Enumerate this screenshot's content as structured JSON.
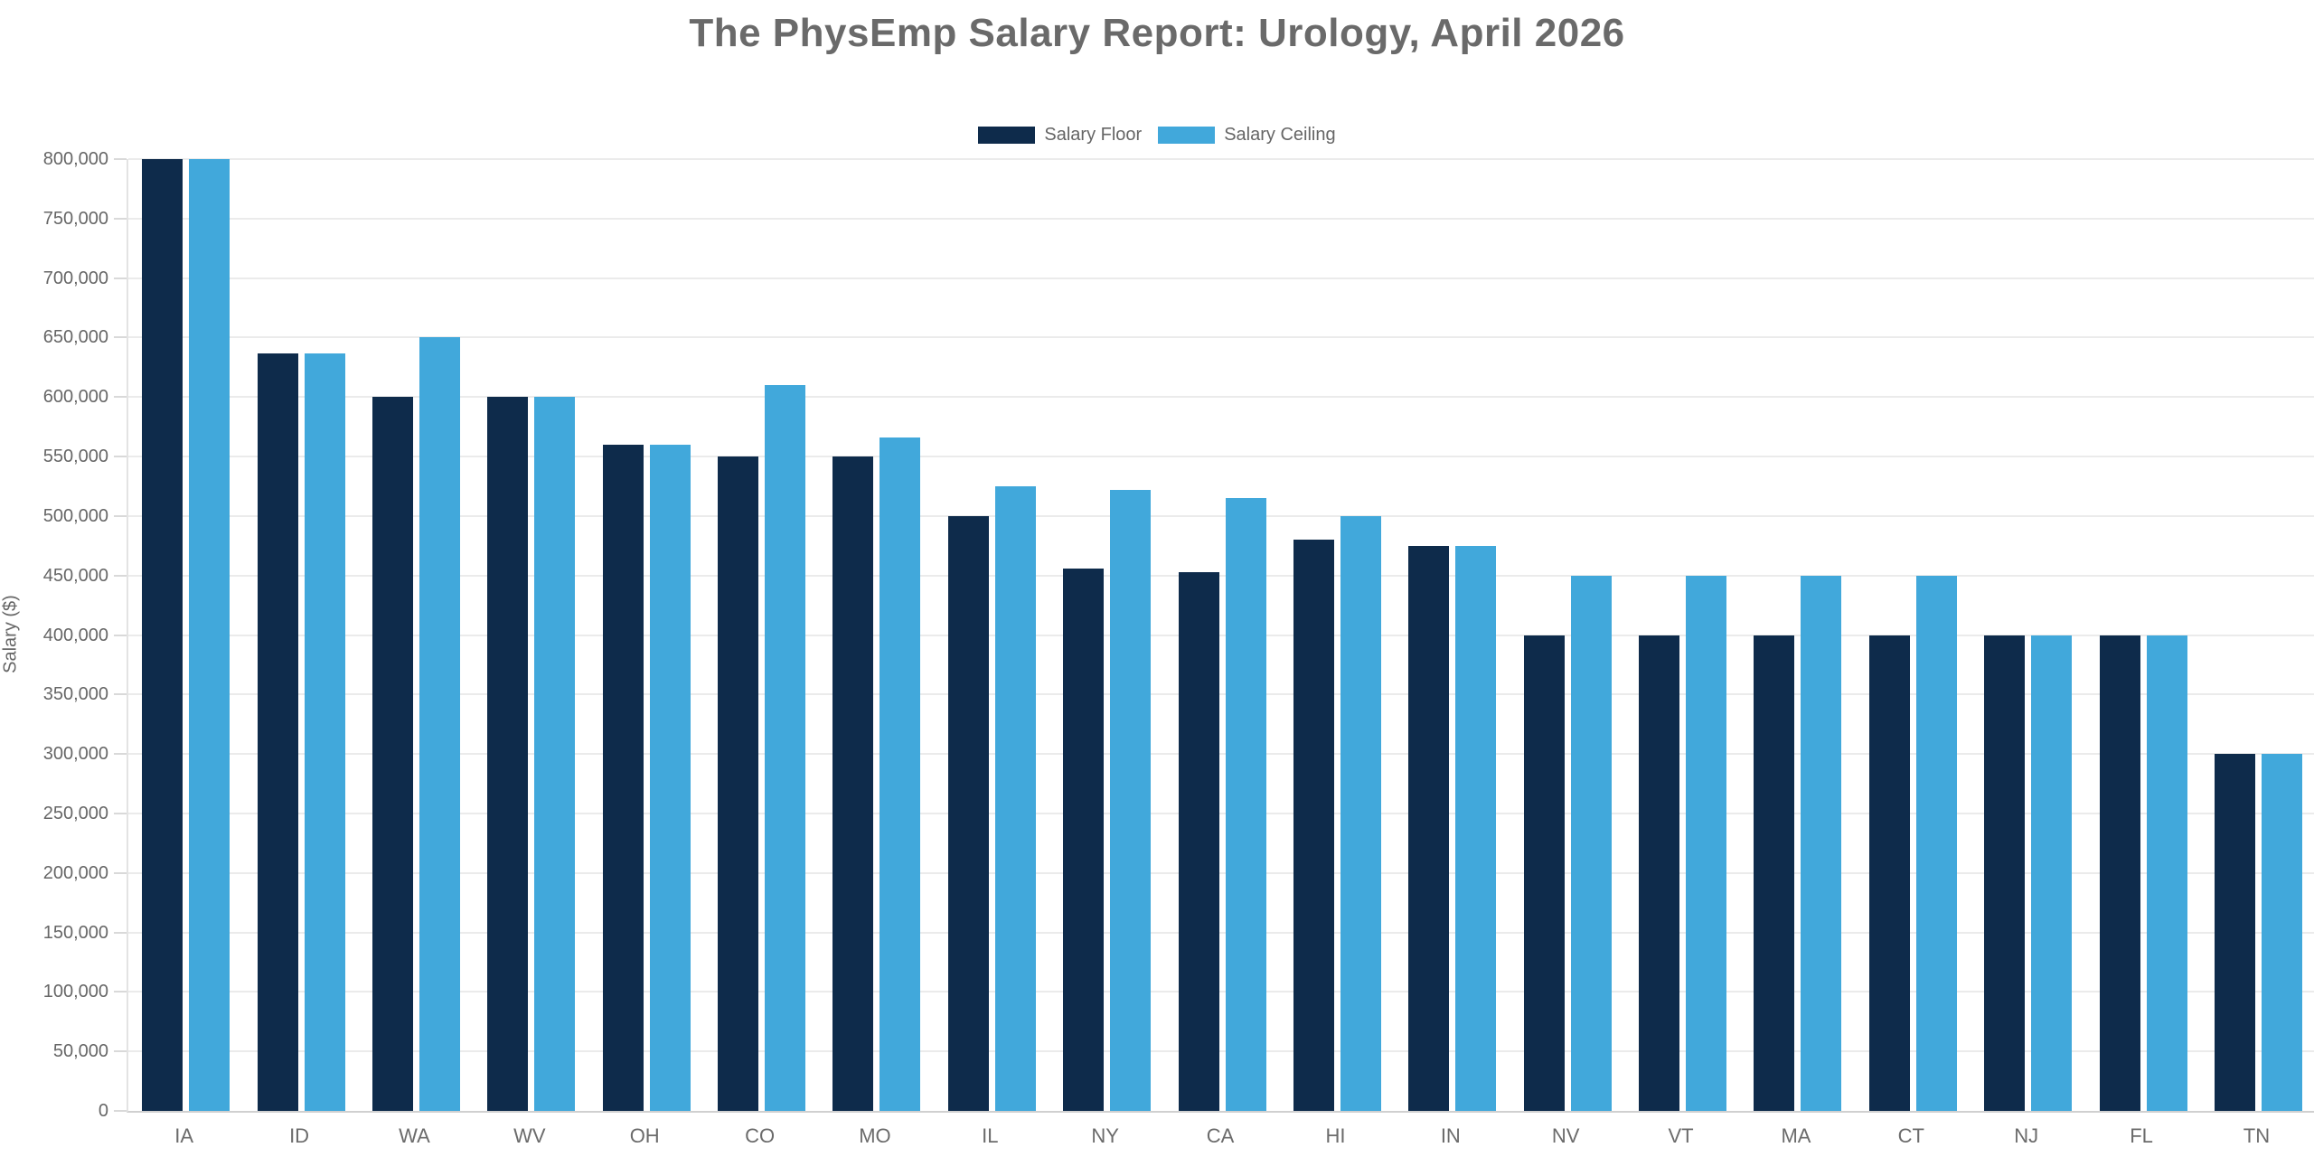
{
  "chart_data": {
    "type": "bar",
    "title": "The PhysEmp Salary Report: Urology, April 2026",
    "xlabel": "",
    "ylabel": "Salary ($)",
    "ylim": [
      0,
      800000
    ],
    "y_tick_step": 50000,
    "grid": true,
    "legend_position": "top",
    "categories": [
      "IA",
      "ID",
      "WA",
      "WV",
      "OH",
      "CO",
      "MO",
      "IL",
      "NY",
      "CA",
      "HI",
      "IN",
      "NV",
      "VT",
      "MA",
      "CT",
      "NJ",
      "FL",
      "TN"
    ],
    "series": [
      {
        "name": "Salary Floor",
        "color": "#0e2b4b",
        "values": [
          800000,
          637000,
          600000,
          600000,
          560000,
          550000,
          550000,
          500000,
          456000,
          453000,
          480000,
          475000,
          400000,
          400000,
          400000,
          400000,
          400000,
          400000,
          300000
        ]
      },
      {
        "name": "Salary Ceiling",
        "color": "#41a8db",
        "values": [
          800000,
          637000,
          650000,
          600000,
          560000,
          610000,
          566000,
          525000,
          522000,
          515000,
          500000,
          475000,
          450000,
          450000,
          450000,
          450000,
          400000,
          400000,
          300000
        ]
      }
    ],
    "colors": {
      "title_text": "#6a6a6a",
      "axis_text": "#666666",
      "gridline": "#ebebeb",
      "background": "#ffffff"
    }
  }
}
